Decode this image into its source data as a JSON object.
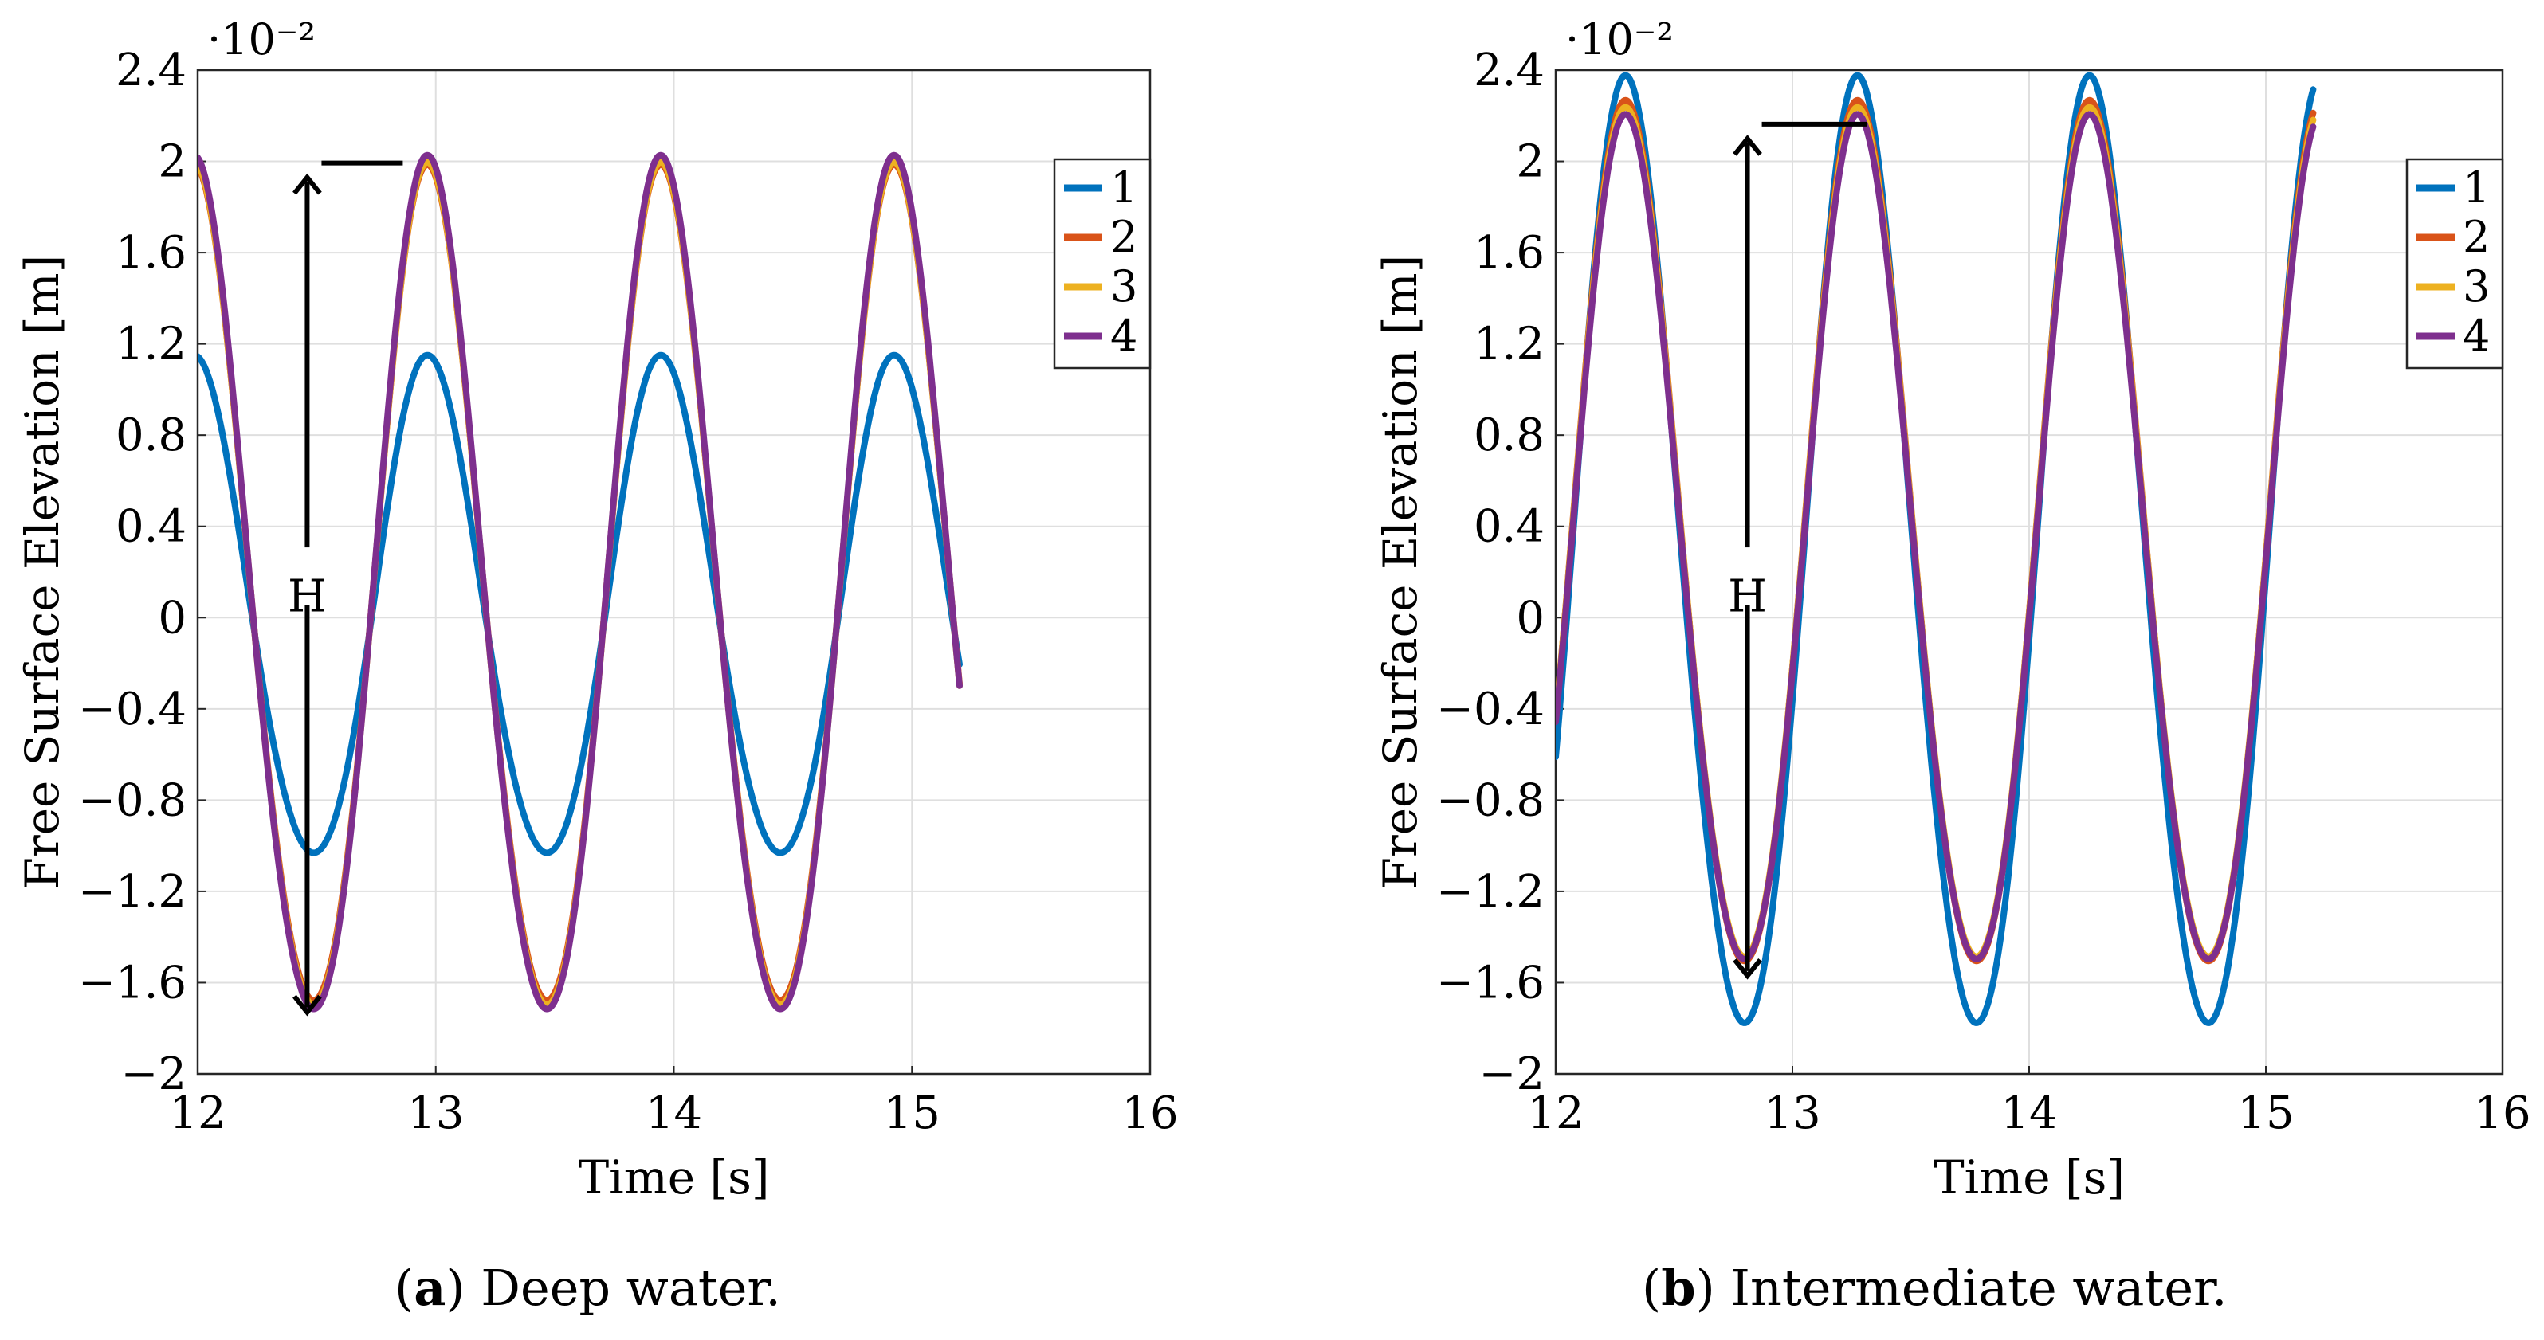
{
  "chart_data": [
    {
      "type": "line",
      "panel_letter": "a",
      "caption": "Deep water.",
      "xlabel": "Time [s]",
      "ylabel": "Free Surface Elevation [m]",
      "y_exponent_label": "·10⁻²",
      "xlim": [
        12,
        16
      ],
      "ylim": [
        -2,
        2.4
      ],
      "x_ticks": [
        "12",
        "13",
        "14",
        "15",
        "16"
      ],
      "y_ticks": [
        "−2",
        "−1.6",
        "−1.2",
        "−0.8",
        "−0.4",
        "0",
        "0.4",
        "0.8",
        "1.2",
        "1.6",
        "2",
        "2.4"
      ],
      "grid": true,
      "legend_position": "top-right",
      "annotation": {
        "text": "H",
        "x": 12.46,
        "y_top": 1.93,
        "y_bottom": -1.73
      },
      "wave": {
        "t_start": 12.0,
        "t_end": 15.2,
        "period": 0.98,
        "crest_time": 12.97
      },
      "series": [
        {
          "name": "1",
          "color": "#0072BD",
          "crest": 1.1,
          "trough": -1.08
        },
        {
          "name": "2",
          "color": "#D95319",
          "crest": 1.9,
          "trough": -1.76
        },
        {
          "name": "3",
          "color": "#EDB120",
          "crest": 1.91,
          "trough": -1.78
        },
        {
          "name": "4",
          "color": "#7E2F8E",
          "crest": 1.94,
          "trough": -1.8
        }
      ]
    },
    {
      "type": "line",
      "panel_letter": "b",
      "caption": "Intermediate water.",
      "xlabel": "Time [s]",
      "ylabel": "Free Surface Elevation [m]",
      "y_exponent_label": "·10⁻²",
      "xlim": [
        12,
        16
      ],
      "ylim": [
        -2,
        2.4
      ],
      "x_ticks": [
        "12",
        "13",
        "14",
        "15",
        "16"
      ],
      "y_ticks": [
        "−2",
        "−1.6",
        "−1.2",
        "−0.8",
        "−0.4",
        "0",
        "0.4",
        "0.8",
        "1.2",
        "1.6",
        "2",
        "2.4"
      ],
      "grid": true,
      "legend_position": "top-right",
      "annotation": {
        "text": "H",
        "x": 12.81,
        "y_top": 2.1,
        "y_bottom": -1.57
      },
      "wave": {
        "t_start": 12.0,
        "t_end": 15.2,
        "period": 0.98,
        "crest_time": 12.3
      },
      "series": [
        {
          "name": "1",
          "color": "#0072BD",
          "crest": 2.28,
          "trough": -1.87
        },
        {
          "name": "2",
          "color": "#D95319",
          "crest": 2.18,
          "trough": -1.59
        },
        {
          "name": "3",
          "color": "#EDB120",
          "crest": 2.15,
          "trough": -1.57
        },
        {
          "name": "4",
          "color": "#7E2F8E",
          "crest": 2.12,
          "trough": -1.58
        }
      ]
    }
  ]
}
